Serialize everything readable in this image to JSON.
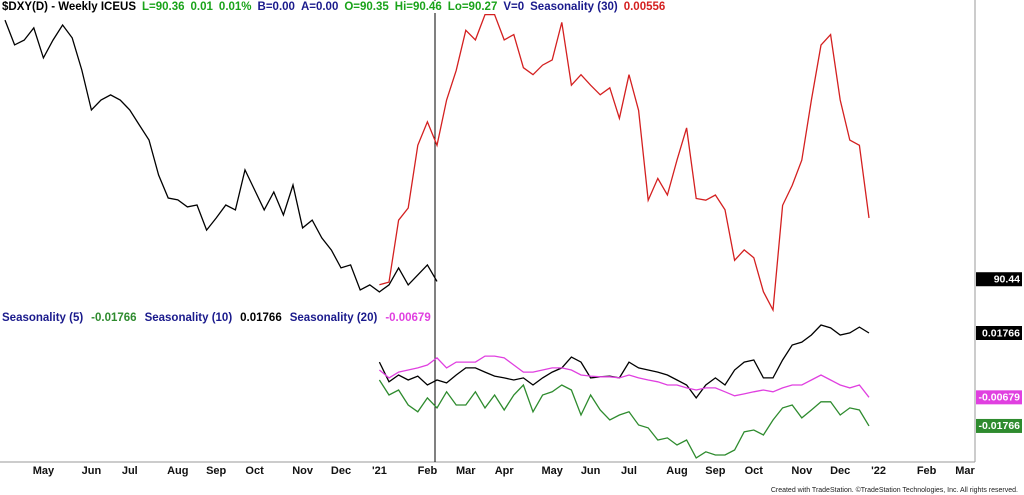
{
  "chart_data": [
    {
      "type": "line",
      "title": "$DXY(D) - Weekly ICEUS",
      "header_fields": [
        {
          "text": "L=90.36",
          "color": "#1aa31a"
        },
        {
          "text": "0.01",
          "color": "#1aa31a"
        },
        {
          "text": "0.01%",
          "color": "#1aa31a"
        },
        {
          "text": "B=0.00",
          "color": "#1a1a8c"
        },
        {
          "text": "A=0.00",
          "color": "#1a1a8c"
        },
        {
          "text": "O=90.35",
          "color": "#1aa31a"
        },
        {
          "text": "Hi=90.46",
          "color": "#1aa31a"
        },
        {
          "text": "Lo=90.27",
          "color": "#1aa31a"
        },
        {
          "text": "V=0",
          "color": "#1a1a8c"
        }
      ],
      "categories": [
        null,
        null,
        null,
        null,
        "May",
        null,
        null,
        null,
        null,
        "Jun",
        null,
        null,
        null,
        "Jul",
        null,
        null,
        null,
        null,
        "Aug",
        null,
        null,
        null,
        "Sep",
        null,
        null,
        null,
        "Oct",
        null,
        null,
        null,
        null,
        "Nov",
        null,
        null,
        null,
        "Dec",
        null,
        null,
        null,
        "'21",
        null,
        null,
        null,
        null,
        "Feb",
        null,
        null,
        null,
        "Mar",
        null,
        null,
        null,
        "Apr",
        null,
        null,
        null,
        null,
        "May",
        null,
        null,
        null,
        "Jun",
        null,
        null,
        null,
        "Jul",
        null,
        null,
        null,
        null,
        "Aug",
        null,
        null,
        null,
        "Sep",
        null,
        null,
        null,
        "Oct",
        null,
        null,
        null,
        null,
        "Nov",
        null,
        null,
        null,
        "Dec",
        null,
        null,
        null,
        "'22",
        null,
        null,
        null,
        null,
        "Feb",
        null,
        null,
        null,
        "Mar"
      ],
      "ylim": [
        89.3,
        100.6
      ],
      "y2lim": [
        -0.005,
        0.03
      ],
      "price_marker": 90.44,
      "series": [
        {
          "color": "#000000",
          "values": [
            100.04,
            99.12,
            99.3,
            99.75,
            98.64,
            99.3,
            99.86,
            99.38,
            98.19,
            96.71,
            97.08,
            97.27,
            97.08,
            96.71,
            96.15,
            95.6,
            94.3,
            93.45,
            93.38,
            93.12,
            93.19,
            92.26,
            92.71,
            93.19,
            93.01,
            94.49,
            93.75,
            93.01,
            93.67,
            92.82,
            93.93,
            92.34,
            92.63,
            91.97,
            91.52,
            90.86,
            90.97,
            90.04,
            90.23,
            89.97,
            90.23,
            90.86,
            90.23,
            90.6,
            90.97,
            90.36,
            null,
            null,
            null,
            null,
            null,
            null,
            null,
            null,
            null,
            null,
            null,
            null,
            null,
            null,
            null,
            null,
            null,
            null,
            null,
            null,
            null,
            null,
            null,
            null,
            null,
            null,
            null,
            null,
            null,
            null,
            null,
            null,
            null,
            null,
            null,
            null,
            null,
            null,
            null,
            null,
            null,
            null,
            null,
            null,
            null,
            null,
            null,
            null,
            null,
            null,
            null,
            null,
            null,
            null,
            null
          ]
        },
        {
          "name": "Seasonality (30)",
          "color": "#d42020",
          "axis": "y2",
          "values": [
            null,
            null,
            null,
            null,
            null,
            null,
            null,
            null,
            null,
            null,
            null,
            null,
            null,
            null,
            null,
            null,
            null,
            null,
            null,
            null,
            null,
            null,
            null,
            null,
            null,
            null,
            null,
            null,
            null,
            null,
            null,
            null,
            null,
            null,
            null,
            null,
            null,
            null,
            null,
            -0.0021,
            -0.0018,
            0.0053,
            0.0067,
            0.0139,
            0.0166,
            0.0139,
            0.0191,
            0.0225,
            0.0271,
            0.026,
            0.0289,
            0.0289,
            0.026,
            0.0266,
            0.0228,
            0.022,
            0.0231,
            0.0237,
            0.028,
            0.0208,
            0.022,
            0.0208,
            0.0197,
            0.0205,
            0.017,
            0.022,
            0.0179,
            0.0076,
            0.0101,
            0.0082,
            0.0122,
            0.0159,
            0.0078,
            0.0076,
            0.0082,
            0.0065,
            0.0007,
            0.0019,
            0.001,
            -0.0029,
            -0.005,
            0.007,
            0.0093,
            0.0122,
            0.0191,
            0.0254,
            0.0266,
            0.0191,
            0.0145,
            0.0139,
            0.00556,
            null,
            null,
            null,
            null,
            null,
            null,
            null,
            null,
            null,
            null
          ]
        }
      ]
    },
    {
      "type": "line",
      "ylim": [
        -0.0306,
        0.0207
      ],
      "series": [
        {
          "name": "Seasonality (5)",
          "color": "#2e8b2e",
          "values": [
            null,
            null,
            null,
            null,
            null,
            null,
            null,
            null,
            null,
            null,
            null,
            null,
            null,
            null,
            null,
            null,
            null,
            null,
            null,
            null,
            null,
            null,
            null,
            null,
            null,
            null,
            null,
            null,
            null,
            null,
            null,
            null,
            null,
            null,
            null,
            null,
            null,
            null,
            null,
            -0.0002,
            -0.0059,
            -0.004,
            -0.0097,
            -0.0123,
            -0.007,
            -0.0108,
            -0.0047,
            -0.0097,
            -0.0097,
            -0.0047,
            -0.0108,
            -0.0059,
            -0.0116,
            -0.0059,
            -0.0021,
            -0.0123,
            -0.0059,
            -0.0047,
            -0.0021,
            -0.004,
            -0.0135,
            -0.0059,
            -0.0116,
            -0.0154,
            -0.0135,
            -0.0123,
            -0.0173,
            -0.0184,
            -0.023,
            -0.0222,
            -0.0249,
            -0.023,
            -0.0298,
            -0.0275,
            -0.0287,
            -0.0287,
            -0.0268,
            -0.0199,
            -0.0192,
            -0.0211,
            -0.0154,
            -0.0108,
            -0.0097,
            -0.0146,
            -0.0116,
            -0.0085,
            -0.0085,
            -0.0135,
            -0.0108,
            -0.0116,
            -0.01766,
            null,
            null,
            null,
            null,
            null,
            null,
            null,
            null,
            null,
            null
          ]
        },
        {
          "name": "Seasonality (10)",
          "color": "#000000",
          "values": [
            null,
            null,
            null,
            null,
            null,
            null,
            null,
            null,
            null,
            null,
            null,
            null,
            null,
            null,
            null,
            null,
            null,
            null,
            null,
            null,
            null,
            null,
            null,
            null,
            null,
            null,
            null,
            null,
            null,
            null,
            null,
            null,
            null,
            null,
            null,
            null,
            null,
            null,
            null,
            0.0066,
            -0.0009,
            0.0017,
            -0.0002,
            0.0013,
            -0.0021,
            -0.0002,
            -0.0013,
            0.0017,
            0.0044,
            0.0044,
            0.0028,
            0.0013,
            0.0006,
            -0.0002,
            0.0006,
            -0.0021,
            0.0006,
            0.0028,
            0.0044,
            0.0085,
            0.0066,
            0.0006,
            0.001,
            0.0013,
            0.0006,
            0.0066,
            0.0044,
            0.0036,
            0.0028,
            0.0017,
            -0.0002,
            -0.0021,
            -0.007,
            -0.0021,
            0.0006,
            -0.0021,
            0.0036,
            0.0066,
            0.0074,
            0.0006,
            0.0006,
            0.0074,
            0.0131,
            0.0142,
            0.0169,
            0.0207,
            0.0196,
            0.0169,
            0.0177,
            0.0199,
            0.01766,
            null,
            null,
            null,
            null,
            null,
            null,
            null,
            null,
            null,
            null
          ]
        },
        {
          "name": "Seasonality (20)",
          "color": "#e040e0",
          "values": [
            null,
            null,
            null,
            null,
            null,
            null,
            null,
            null,
            null,
            null,
            null,
            null,
            null,
            null,
            null,
            null,
            null,
            null,
            null,
            null,
            null,
            null,
            null,
            null,
            null,
            null,
            null,
            null,
            null,
            null,
            null,
            null,
            null,
            null,
            null,
            null,
            null,
            null,
            null,
            0.0036,
            0.0006,
            0.0028,
            0.0036,
            0.0044,
            0.0055,
            0.0082,
            0.0044,
            0.0066,
            0.0066,
            0.0066,
            0.0089,
            0.0089,
            0.0082,
            0.0055,
            0.0028,
            0.0028,
            0.0036,
            0.0044,
            0.0044,
            0.0036,
            0.0017,
            0.0013,
            0.001,
            0.001,
            0.0006,
            0.0017,
            0.0006,
            -0.0002,
            -0.0009,
            -0.0021,
            -0.0021,
            -0.0032,
            -0.004,
            -0.0032,
            -0.0032,
            -0.0047,
            -0.0062,
            -0.0055,
            -0.0047,
            -0.004,
            -0.0047,
            -0.0032,
            -0.0021,
            -0.0021,
            -0.0002,
            0.0017,
            -0.0002,
            -0.0021,
            -0.0032,
            -0.0021,
            -0.00679,
            null,
            null,
            null,
            null,
            null,
            null,
            null,
            null,
            null,
            null
          ]
        }
      ]
    }
  ],
  "footer": "Created with TradeStation. ©TradeStation Technologies, Inc. All rights reserved."
}
